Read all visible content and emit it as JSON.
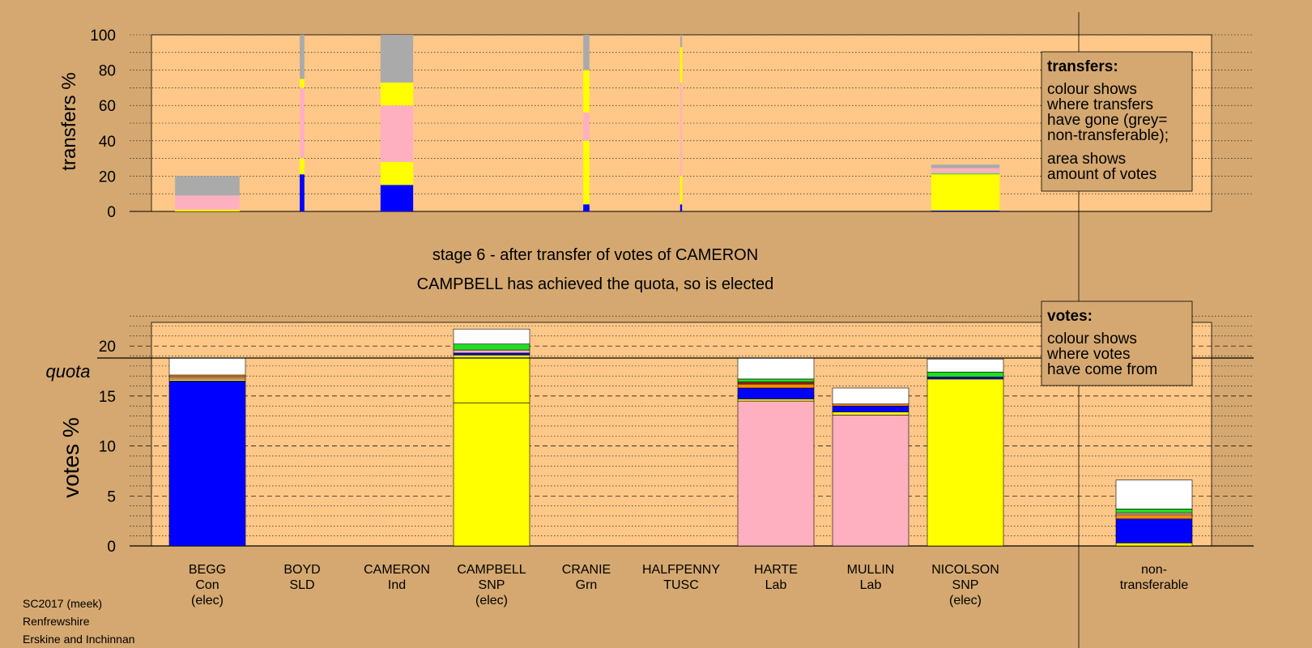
{
  "colors": {
    "background": "#d4a870",
    "plot_bg": "#ffc888",
    "Con": "#0000ff",
    "SNP": "#ffff00",
    "Lab": "#ffb0c0",
    "Grn": "#22dd22",
    "Ind": "#ff8c00",
    "SLD": "#ff8c00",
    "TUSC": "#aa2222",
    "nontransferable": "#aaaaaa",
    "other": "#ffffff"
  },
  "stage_title": "stage 6 - after transfer of votes of CAMERON",
  "stage_subtitle": "CAMPBELL has achieved the quota, so is elected",
  "footer": [
    "SC2017 (meek)",
    "Renfrewshire",
    "Erskine and Inchinnan"
  ],
  "transfers_legend": {
    "title": "transfers:",
    "lines": [
      "colour shows",
      "where transfers",
      "have gone (grey=",
      "non-transferable);"
    ],
    "lines2": [
      "area shows",
      "amount of votes"
    ]
  },
  "votes_legend": {
    "title": "votes:",
    "lines": [
      "colour shows",
      "where votes",
      "have come from"
    ]
  },
  "chart_data": [
    {
      "type": "bar",
      "stacked": true,
      "ylabel": "transfers %",
      "ylim": [
        0,
        100
      ],
      "yticks": [
        0,
        20,
        40,
        60,
        80,
        100
      ],
      "grid": "dotted",
      "bars": [
        {
          "candidate": "BEGG",
          "width_rel": 0.83,
          "segments": [
            {
              "color": "SNP",
              "value": 1
            },
            {
              "color": "Lab",
              "value": 8
            },
            {
              "color": "nontransferable",
              "value": 11
            }
          ]
        },
        {
          "candidate": "BOYD",
          "width_rel": 0.06,
          "segments": [
            {
              "color": "Con",
              "value": 21
            },
            {
              "color": "SNP",
              "value": 9
            },
            {
              "color": "Lab",
              "value": 40
            },
            {
              "color": "SNP",
              "value": 5
            },
            {
              "color": "nontransferable",
              "value": 25
            }
          ]
        },
        {
          "candidate": "CAMERON",
          "width_rel": 0.42,
          "segments": [
            {
              "color": "Con",
              "value": 15
            },
            {
              "color": "SNP",
              "value": 13
            },
            {
              "color": "Lab",
              "value": 32
            },
            {
              "color": "SNP",
              "value": 13
            },
            {
              "color": "nontransferable",
              "value": 27
            }
          ]
        },
        {
          "candidate": "CRANIE",
          "width_rel": 0.08,
          "segments": [
            {
              "color": "Con",
              "value": 4
            },
            {
              "color": "SNP",
              "value": 36
            },
            {
              "color": "Lab",
              "value": 16
            },
            {
              "color": "SNP",
              "value": 24
            },
            {
              "color": "nontransferable",
              "value": 20
            }
          ]
        },
        {
          "candidate": "HALFPENNY",
          "width_rel": 0.025,
          "segments": [
            {
              "color": "Con",
              "value": 4
            },
            {
              "color": "SNP",
              "value": 16
            },
            {
              "color": "Lab",
              "value": 53
            },
            {
              "color": "SNP",
              "value": 20
            },
            {
              "color": "nontransferable",
              "value": 7
            }
          ]
        },
        {
          "candidate": "NICOLSON",
          "width_rel": 0.88,
          "segments": [
            {
              "color": "Con",
              "value": 0.5
            },
            {
              "color": "SNP",
              "value": 20.5
            },
            {
              "color": "Grn",
              "value": 0.5
            },
            {
              "color": "Lab",
              "value": 3
            },
            {
              "color": "nontransferable",
              "value": 2
            }
          ]
        }
      ]
    },
    {
      "type": "bar",
      "stacked": true,
      "ylabel": "votes %",
      "ylim": [
        0,
        24
      ],
      "yticks": [
        0,
        5,
        10,
        15,
        20
      ],
      "quota": 18.8,
      "quota_label": "quota",
      "grid": "dashed",
      "categories": [
        "BEGG",
        "BOYD",
        "CAMERON",
        "CAMPBELL",
        "CRANIE",
        "HALFPENNY",
        "HARTE",
        "MULLIN",
        "NICOLSON",
        "non-transferable"
      ],
      "category_labels": [
        [
          "BEGG",
          "Con",
          "(elec)"
        ],
        [
          "BOYD",
          "SLD"
        ],
        [
          "CAMERON",
          "Ind"
        ],
        [
          "CAMPBELL",
          "SNP",
          "(elec)"
        ],
        [
          "CRANIE",
          "Grn"
        ],
        [
          "HALFPENNY",
          "TUSC"
        ],
        [
          "HARTE",
          "Lab"
        ],
        [
          "MULLIN",
          "Lab"
        ],
        [
          "NICOLSON",
          "SNP",
          "(elec)"
        ],
        [
          "non-",
          "transferable"
        ]
      ],
      "bars": [
        {
          "candidate": "BEGG",
          "segments": [
            {
              "color": "Con",
              "value": 16.5
            },
            {
              "color": "SNP",
              "value": 0.2
            },
            {
              "color": "Lab",
              "value": 0.2
            },
            {
              "color": "Ind",
              "value": 0.2
            },
            {
              "color": "other",
              "value": 1.7
            }
          ]
        },
        {
          "candidate": "BOYD",
          "segments": []
        },
        {
          "candidate": "CAMERON",
          "segments": []
        },
        {
          "candidate": "CAMPBELL",
          "segments": [
            {
              "color": "SNP",
              "value": 14.3
            },
            {
              "color": "SNP",
              "value": 4.8
            },
            {
              "color": "Con",
              "value": 0.2
            },
            {
              "color": "Lab",
              "value": 0.3
            },
            {
              "color": "Grn",
              "value": 0.6
            },
            {
              "color": "other",
              "value": 1.5
            }
          ]
        },
        {
          "candidate": "CRANIE",
          "segments": []
        },
        {
          "candidate": "HALFPENNY",
          "segments": []
        },
        {
          "candidate": "HARTE",
          "segments": [
            {
              "color": "Lab",
              "value": 14.5
            },
            {
              "color": "SNP",
              "value": 0.2
            },
            {
              "color": "Con",
              "value": 1.1
            },
            {
              "color": "Ind",
              "value": 0.4
            },
            {
              "color": "TUSC",
              "value": 0.2
            },
            {
              "color": "Grn",
              "value": 0.3
            },
            {
              "color": "other",
              "value": 2.1
            }
          ]
        },
        {
          "candidate": "MULLIN",
          "segments": [
            {
              "color": "Lab",
              "value": 13.1
            },
            {
              "color": "SNP",
              "value": 0.3
            },
            {
              "color": "Con",
              "value": 0.6
            },
            {
              "color": "Ind",
              "value": 0.2
            },
            {
              "color": "other",
              "value": 1.6
            }
          ]
        },
        {
          "candidate": "NICOLSON",
          "segments": [
            {
              "color": "SNP",
              "value": 16.7
            },
            {
              "color": "Con",
              "value": 0.2
            },
            {
              "color": "Grn",
              "value": 0.5
            },
            {
              "color": "other",
              "value": 1.3
            }
          ]
        },
        {
          "candidate": "non-transferable",
          "segments": [
            {
              "color": "SNP",
              "value": 0.3
            },
            {
              "color": "Con",
              "value": 2.4
            },
            {
              "color": "Ind",
              "value": 0.4
            },
            {
              "color": "Lab",
              "value": 0.2
            },
            {
              "color": "Grn",
              "value": 0.4
            },
            {
              "color": "other",
              "value": 2.9
            }
          ]
        }
      ]
    }
  ]
}
